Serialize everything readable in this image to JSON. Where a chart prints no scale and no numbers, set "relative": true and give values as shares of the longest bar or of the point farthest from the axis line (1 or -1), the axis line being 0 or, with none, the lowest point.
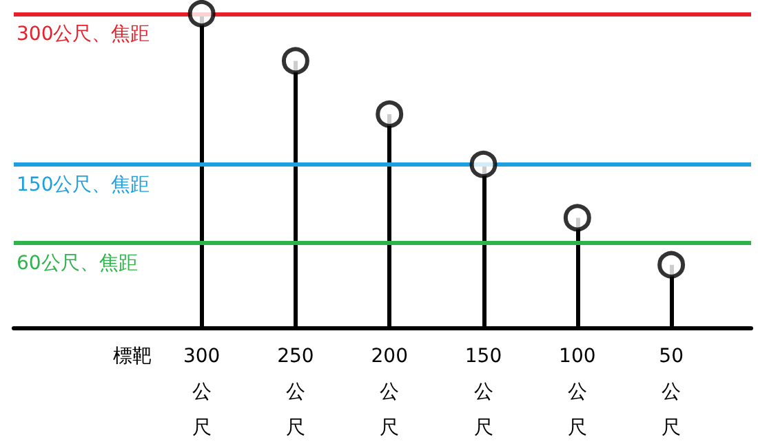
{
  "chart_data": {
    "type": "lollipop",
    "relative": true,
    "xlabel": "標靶",
    "categories": [
      "300公尺",
      "250公尺",
      "200公尺",
      "150公尺",
      "100公尺",
      "50公尺"
    ],
    "values": [
      1,
      0.85,
      0.68,
      0.52,
      0.35,
      0.2
    ],
    "color": "#000000",
    "marker": "circle",
    "ref_lines": [
      {
        "axis": "y",
        "value": 1,
        "label": "300公尺、焦距",
        "color": "#e8202a"
      },
      {
        "axis": "y",
        "value": 0.52,
        "label": "150公尺、焦距",
        "color": "#1ea0e0"
      },
      {
        "axis": "y",
        "value": 0.27,
        "label": "60公尺、焦距",
        "color": "#2db34a"
      }
    ],
    "line_style": "solid"
  }
}
